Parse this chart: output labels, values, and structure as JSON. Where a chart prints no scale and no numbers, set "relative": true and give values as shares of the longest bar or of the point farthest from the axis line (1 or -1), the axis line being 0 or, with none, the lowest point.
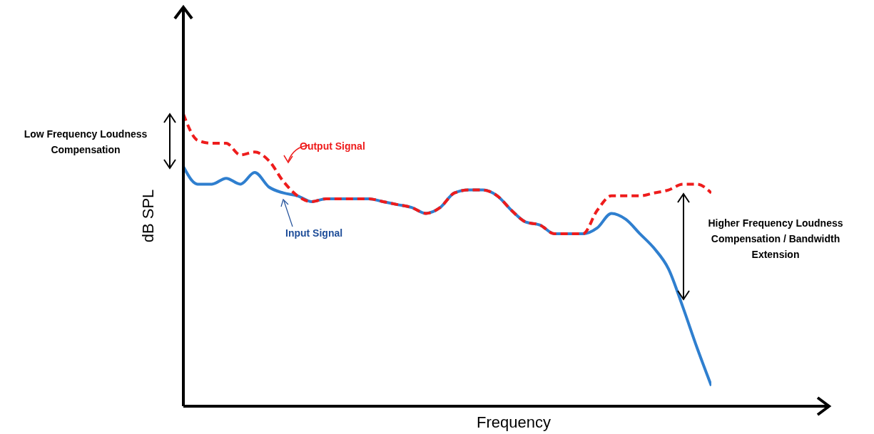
{
  "chart_data": {
    "type": "line",
    "relative": true,
    "xlabel": "Frequency",
    "ylabel": "dB SPL",
    "marker": "none",
    "categories": [
      null,
      null,
      null,
      null,
      null,
      null,
      null,
      null,
      null,
      null,
      null,
      null,
      null,
      null,
      null,
      null,
      null,
      null,
      null,
      null,
      null,
      null,
      null,
      null,
      null,
      null,
      null,
      null,
      null,
      null,
      null,
      null,
      null,
      null,
      null,
      null,
      null,
      null
    ],
    "series": [
      {
        "name": "Input Signal",
        "color": "#2f7fcf",
        "line_style": "solid",
        "values": [
          0.82,
          0.76,
          0.76,
          0.78,
          0.76,
          0.8,
          0.75,
          0.73,
          0.72,
          0.7,
          0.71,
          0.71,
          0.71,
          0.71,
          0.7,
          0.69,
          0.68,
          0.66,
          0.68,
          0.73,
          0.74,
          0.74,
          0.72,
          0.67,
          0.63,
          0.62,
          0.59,
          0.59,
          0.59,
          0.61,
          0.66,
          0.64,
          0.59,
          0.54,
          0.47,
          0.34,
          0.2,
          0.07
        ]
      },
      {
        "name": "Output Signal",
        "color": "#ee1c1c",
        "line_style": "dashed",
        "values": [
          1.0,
          0.91,
          0.9,
          0.9,
          0.86,
          0.87,
          0.84,
          0.77,
          0.72,
          0.7,
          0.71,
          0.71,
          0.71,
          0.71,
          0.7,
          0.69,
          0.68,
          0.66,
          0.68,
          0.73,
          0.74,
          0.74,
          0.72,
          0.67,
          0.63,
          0.62,
          0.59,
          0.59,
          0.59,
          0.67,
          0.72,
          0.72,
          0.72,
          0.73,
          0.74,
          0.76,
          0.76,
          0.73
        ]
      }
    ],
    "annotations": [
      "Low Frequency Loudness Compensation",
      "Higher Frequency Loudness Compensation / Bandwidth Extension"
    ]
  }
}
